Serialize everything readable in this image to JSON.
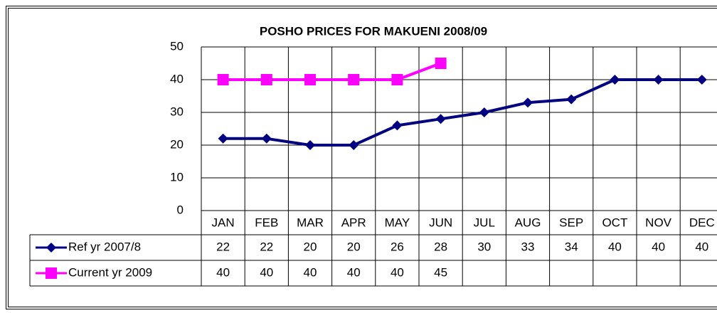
{
  "chart_data": {
    "type": "line",
    "title": "POSHO PRICES FOR MAKUENI 2008/09",
    "categories": [
      "JAN",
      "FEB",
      "MAR",
      "APR",
      "MAY",
      "JUN",
      "JUL",
      "AUG",
      "SEP",
      "OCT",
      "NOV",
      "DEC"
    ],
    "series": [
      {
        "name": "Ref yr 2007/8",
        "color": "#000080",
        "marker": "diamond",
        "values": [
          22,
          22,
          20,
          20,
          26,
          28,
          30,
          33,
          34,
          40,
          40,
          40
        ]
      },
      {
        "name": "Current yr 2009",
        "color": "#ff00ff",
        "marker": "square",
        "values": [
          40,
          40,
          40,
          40,
          40,
          45,
          null,
          null,
          null,
          null,
          null,
          null
        ]
      }
    ],
    "ylim": [
      0,
      50
    ],
    "yticks": [
      0,
      10,
      20,
      30,
      40,
      50
    ],
    "grid": true,
    "data_table": true
  }
}
